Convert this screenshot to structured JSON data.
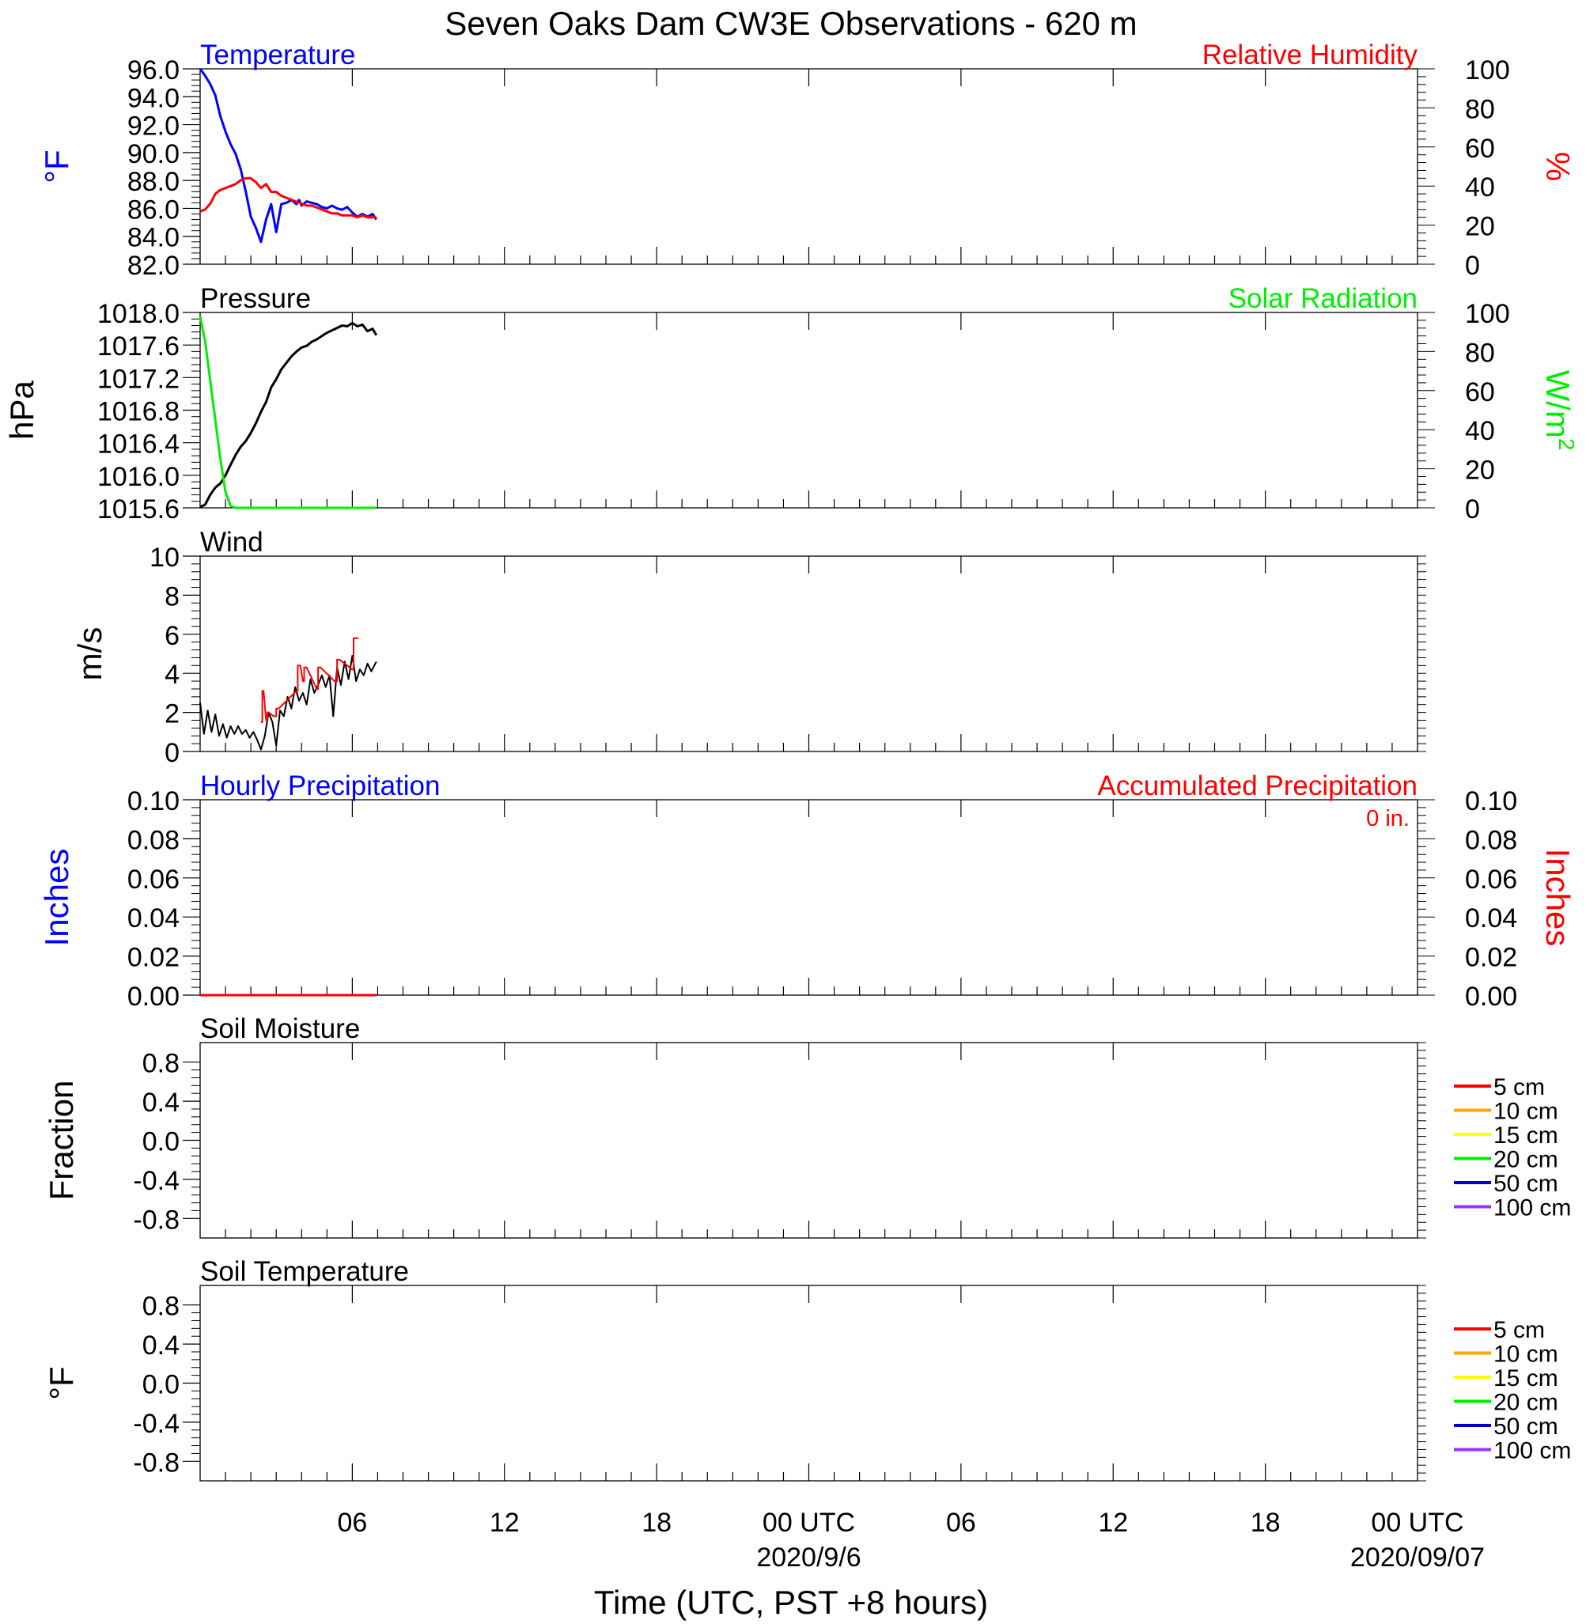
{
  "title": "Seven Oaks Dam CW3E Observations - 620 m",
  "xlabel": "Time (UTC, PST +8 hours)",
  "colors": {
    "blue": "#0000ff",
    "red": "#ff0000",
    "green": "#00ee00",
    "black": "#000000",
    "soil": [
      "#ff0000",
      "#ffa500",
      "#ffff00",
      "#00ee00",
      "#0000cc",
      "#9933ff"
    ]
  },
  "x_axis": {
    "range_hours": [
      0,
      48
    ],
    "ticks": [
      {
        "h": 6,
        "label": "06"
      },
      {
        "h": 12,
        "label": "12"
      },
      {
        "h": 18,
        "label": "18"
      },
      {
        "h": 24,
        "label": "00 UTC",
        "date": "2020/9/6"
      },
      {
        "h": 30,
        "label": "06"
      },
      {
        "h": 36,
        "label": "12"
      },
      {
        "h": 42,
        "label": "18"
      },
      {
        "h": 48,
        "label": "00 UTC",
        "date": "2020/09/07"
      }
    ]
  },
  "chart_data": [
    {
      "type": "line",
      "left_title": "Temperature",
      "right_title": "Relative Humidity",
      "left_unit": "°F",
      "right_unit": "%",
      "left_ylim": [
        82,
        96
      ],
      "left_ticks": [
        "96.0",
        "94.0",
        "92.0",
        "90.0",
        "88.0",
        "86.0",
        "84.0",
        "82.0"
      ],
      "right_ylim": [
        0,
        100
      ],
      "right_ticks": [
        "100",
        "80",
        "60",
        "40",
        "20",
        "0"
      ],
      "series": [
        {
          "axis": "left",
          "color": "#0000ff",
          "x": [
            0,
            0.2,
            0.4,
            0.6,
            0.8,
            1.0,
            1.2,
            1.4,
            1.6,
            1.8,
            2.0,
            2.2,
            2.4,
            2.6,
            2.8,
            3.0,
            3.2,
            3.4,
            3.6,
            3.8,
            3.9,
            4.0,
            4.2,
            4.4,
            4.6,
            4.8,
            5.0,
            5.2,
            5.4,
            5.6,
            5.8,
            6.0,
            6.2,
            6.4,
            6.6,
            6.8,
            6.95
          ],
          "y": [
            96.0,
            95.5,
            94.9,
            94.1,
            92.6,
            91.5,
            90.6,
            89.9,
            88.8,
            87.2,
            85.4,
            84.6,
            83.6,
            85.2,
            86.3,
            84.3,
            86.3,
            86.4,
            86.6,
            86.3,
            86.6,
            86.2,
            86.5,
            86.4,
            86.3,
            86.1,
            86.0,
            86.2,
            86.0,
            85.9,
            86.1,
            85.7,
            85.4,
            85.6,
            85.4,
            85.6,
            85.2
          ]
        },
        {
          "axis": "right",
          "color": "#ff0000",
          "x": [
            0,
            0.2,
            0.4,
            0.6,
            0.8,
            1.0,
            1.2,
            1.4,
            1.6,
            1.8,
            2.0,
            2.2,
            2.4,
            2.6,
            2.8,
            3.0,
            3.2,
            3.4,
            3.6,
            3.8,
            4.0,
            4.2,
            4.4,
            4.6,
            4.8,
            5.0,
            5.2,
            5.4,
            5.6,
            5.8,
            6.0,
            6.2,
            6.4,
            6.6,
            6.8,
            6.95
          ],
          "y": [
            27,
            28,
            31,
            36,
            38,
            39,
            40,
            41,
            43,
            44,
            44,
            42,
            39,
            41,
            37,
            37,
            35,
            34,
            33,
            32,
            31,
            30,
            30,
            29,
            28,
            27,
            26,
            26,
            25,
            25,
            25,
            24,
            25,
            24,
            24,
            24
          ]
        }
      ]
    },
    {
      "type": "line",
      "left_title": "Pressure",
      "right_title": "Solar Radiation",
      "left_unit": "hPa",
      "right_unit": "W/m",
      "right_unit_sup": "2",
      "left_ylim": [
        1015.6,
        1018.0
      ],
      "left_ticks": [
        "1018.0",
        "1017.6",
        "1017.2",
        "1016.8",
        "1016.4",
        "1016.0",
        "1015.6"
      ],
      "right_ylim": [
        0,
        100
      ],
      "right_ticks": [
        "100",
        "80",
        "60",
        "40",
        "20",
        "0"
      ],
      "series": [
        {
          "axis": "left",
          "color": "#000000",
          "x": [
            0,
            0.2,
            0.4,
            0.6,
            0.8,
            1.0,
            1.2,
            1.4,
            1.6,
            1.8,
            2.0,
            2.2,
            2.4,
            2.6,
            2.8,
            3.0,
            3.2,
            3.4,
            3.6,
            3.8,
            4.0,
            4.2,
            4.4,
            4.6,
            4.8,
            5.0,
            5.2,
            5.4,
            5.6,
            5.8,
            6.0,
            6.2,
            6.4,
            6.6,
            6.8,
            6.95
          ],
          "y": [
            1015.61,
            1015.64,
            1015.76,
            1015.85,
            1015.9,
            1016.0,
            1016.13,
            1016.25,
            1016.35,
            1016.42,
            1016.52,
            1016.64,
            1016.78,
            1016.9,
            1017.08,
            1017.18,
            1017.3,
            1017.38,
            1017.46,
            1017.52,
            1017.57,
            1017.59,
            1017.64,
            1017.67,
            1017.71,
            1017.75,
            1017.78,
            1017.81,
            1017.84,
            1017.83,
            1017.87,
            1017.83,
            1017.85,
            1017.77,
            1017.8,
            1017.72
          ]
        },
        {
          "axis": "right",
          "color": "#00ee00",
          "x": [
            0,
            0.2,
            0.4,
            0.6,
            0.8,
            1.0,
            1.2,
            1.4,
            1.6,
            6.95
          ],
          "y": [
            98,
            85,
            65,
            45,
            25,
            8,
            1,
            0,
            0,
            0
          ]
        }
      ]
    },
    {
      "type": "line",
      "left_title": "Wind",
      "left_unit": "m/s",
      "left_ylim": [
        0,
        10
      ],
      "left_ticks": [
        "10",
        "8",
        "6",
        "4",
        "2",
        "0"
      ],
      "series": [
        {
          "axis": "left",
          "color": "#000000",
          "x": [
            0,
            0.15,
            0.3,
            0.45,
            0.6,
            0.75,
            0.9,
            1.05,
            1.2,
            1.35,
            1.5,
            1.65,
            1.8,
            1.95,
            2.1,
            2.25,
            2.4,
            2.55,
            2.7,
            2.85,
            3.0,
            3.15,
            3.3,
            3.45,
            3.6,
            3.75,
            3.9,
            4.05,
            4.2,
            4.35,
            4.5,
            4.65,
            4.8,
            4.95,
            5.1,
            5.25,
            5.4,
            5.55,
            5.7,
            5.85,
            6.0,
            6.15,
            6.3,
            6.45,
            6.6,
            6.75,
            6.95
          ],
          "y": [
            2.5,
            0.9,
            2.1,
            1.0,
            1.9,
            0.8,
            1.4,
            0.7,
            1.3,
            0.9,
            1.3,
            0.9,
            1.1,
            0.7,
            1.0,
            0.6,
            0.1,
            0.8,
            2.0,
            1.5,
            0.3,
            2.1,
            1.8,
            2.8,
            2.2,
            3.3,
            2.6,
            3.0,
            2.4,
            3.7,
            3.0,
            3.4,
            3.9,
            3.3,
            3.9,
            1.8,
            4.3,
            3.4,
            4.6,
            3.7,
            4.9,
            3.6,
            4.2,
            3.9,
            4.5,
            4.1,
            4.6
          ]
        },
        {
          "axis": "left",
          "color": "#ff0000",
          "x": [
            2.4,
            2.45,
            2.45,
            2.5,
            2.6,
            2.65,
            2.65,
            2.7,
            2.9,
            3.0,
            3.0,
            3.1,
            3.8,
            3.85,
            3.85,
            3.95,
            4.05,
            4.1,
            4.1,
            4.2,
            4.6,
            4.65,
            4.65,
            4.75,
            5.3,
            5.4,
            5.4,
            5.5,
            6.0,
            6.05,
            6.05,
            6.25
          ],
          "y": [
            1.5,
            1.5,
            3.1,
            3.1,
            1.6,
            1.6,
            2.0,
            2.0,
            1.8,
            1.8,
            2.2,
            2.2,
            3.1,
            3.1,
            4.4,
            4.4,
            3.6,
            3.6,
            4.3,
            4.3,
            3.2,
            3.2,
            4.3,
            4.3,
            3.6,
            3.6,
            4.7,
            4.7,
            4.2,
            4.2,
            5.8,
            5.8
          ]
        }
      ]
    },
    {
      "type": "line",
      "left_title": "Hourly Precipitation",
      "right_title": "Accumulated Precipitation",
      "annotation": "0 in.",
      "left_unit": "Inches",
      "right_unit": "Inches",
      "left_ylim": [
        0,
        0.1
      ],
      "left_ticks": [
        "0.10",
        "0.08",
        "0.06",
        "0.04",
        "0.02",
        "0.00"
      ],
      "right_ylim": [
        0,
        0.1
      ],
      "right_ticks": [
        "0.10",
        "0.08",
        "0.06",
        "0.04",
        "0.02",
        "0.00"
      ],
      "series": [
        {
          "axis": "left",
          "color": "#0000ff",
          "x": [
            0,
            6.95
          ],
          "y": [
            0,
            0
          ]
        },
        {
          "axis": "right",
          "color": "#ff0000",
          "x": [
            0,
            6.95
          ],
          "y": [
            0,
            0
          ]
        }
      ]
    },
    {
      "type": "line",
      "left_title": "Soil Moisture",
      "left_unit": "Fraction",
      "left_ylim": [
        -1,
        1
      ],
      "left_ticks": [
        "0.8",
        "0.4",
        "0.0",
        "-0.4",
        "-0.8"
      ],
      "left_tick_values": [
        0.8,
        0.4,
        0.0,
        -0.4,
        -0.8
      ],
      "legend": [
        "5 cm",
        "10 cm",
        "15 cm",
        "20 cm",
        "50 cm",
        "100 cm"
      ],
      "series": []
    },
    {
      "type": "line",
      "left_title": "Soil Temperature",
      "left_unit": "°F",
      "left_ylim": [
        -1,
        1
      ],
      "left_ticks": [
        "0.8",
        "0.4",
        "0.0",
        "-0.4",
        "-0.8"
      ],
      "left_tick_values": [
        0.8,
        0.4,
        0.0,
        -0.4,
        -0.8
      ],
      "legend": [
        "5 cm",
        "10 cm",
        "15 cm",
        "20 cm",
        "50 cm",
        "100 cm"
      ],
      "series": []
    }
  ]
}
